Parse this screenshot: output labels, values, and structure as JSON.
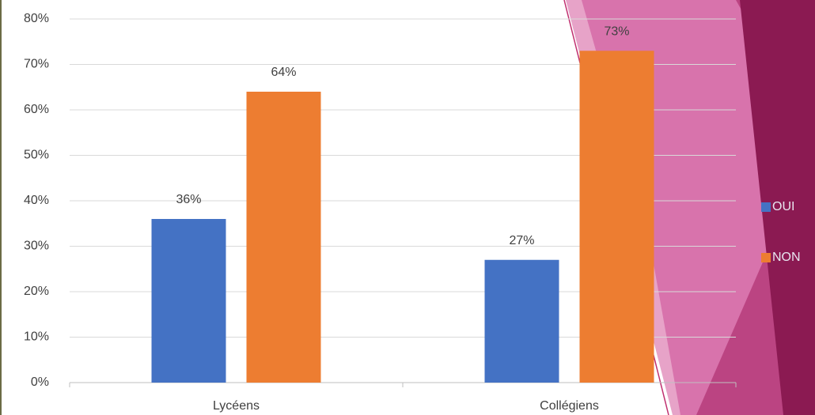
{
  "chart_data": {
    "type": "bar",
    "categories": [
      "Lycéens",
      "Collégiens"
    ],
    "series": [
      {
        "name": "OUI",
        "color": "#4472c4",
        "values": [
          36,
          27
        ],
        "value_labels": [
          "36%",
          "27%"
        ]
      },
      {
        "name": "NON",
        "color": "#ed7d31",
        "values": [
          64,
          73
        ],
        "value_labels": [
          "64%",
          "73%"
        ]
      }
    ],
    "ylim": [
      0,
      80
    ],
    "yticks": [
      {
        "value": 0,
        "label": "0%"
      },
      {
        "value": 10,
        "label": "10%"
      },
      {
        "value": 20,
        "label": "20%"
      },
      {
        "value": 30,
        "label": "30%"
      },
      {
        "value": 40,
        "label": "40%"
      },
      {
        "value": 50,
        "label": "50%"
      },
      {
        "value": 60,
        "label": "60%"
      },
      {
        "value": 70,
        "label": "70%"
      },
      {
        "value": 80,
        "label": "80%"
      }
    ],
    "grid": true,
    "legend": "right"
  }
}
